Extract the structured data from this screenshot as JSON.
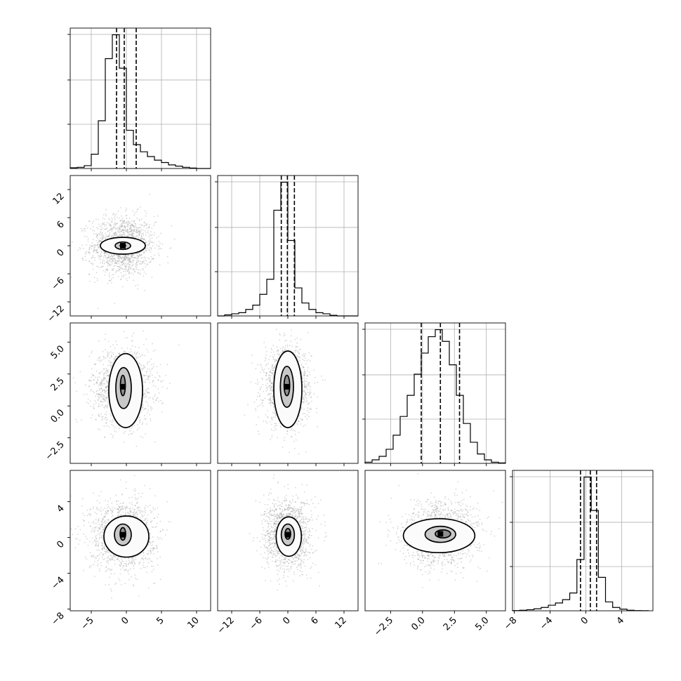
{
  "chart_data": {
    "type": "corner",
    "grid": true,
    "parameters": [
      {
        "ticks": [
          -5,
          0,
          5,
          10
        ],
        "tick_labels": [
          "−5",
          "0",
          "5",
          "10"
        ],
        "range": [
          -8,
          12
        ],
        "quantiles": [
          -1.4,
          -0.3,
          1.4
        ],
        "hist_edges": [
          -8,
          -7,
          -6,
          -5,
          -4,
          -3,
          -2,
          -1,
          0,
          1,
          2,
          3,
          4,
          5,
          6,
          7,
          8,
          9,
          10,
          11,
          12
        ],
        "hist_counts": [
          0.3,
          0.5,
          1.2,
          6,
          20,
          46,
          56,
          42,
          16,
          10,
          7,
          5,
          3.5,
          2.5,
          1.5,
          1,
          0.5,
          0.2,
          0,
          0
        ]
      },
      {
        "ticks": [
          -12,
          -6,
          0,
          6,
          12
        ],
        "tick_labels": [
          "−12",
          "−6",
          "0",
          "6",
          "12"
        ],
        "range": [
          -15,
          15
        ],
        "quantiles": [
          -1.4,
          -0.1,
          1.4
        ],
        "hist_edges": [
          -15,
          -13.5,
          -12,
          -10.5,
          -9,
          -7.5,
          -6,
          -4.5,
          -3,
          -1.5,
          0,
          1.5,
          3,
          4.5,
          6,
          7.5,
          9,
          10.5,
          12,
          13.5,
          15
        ],
        "hist_counts": [
          0,
          0.5,
          1,
          1.5,
          3,
          5,
          10,
          17,
          49,
          62,
          35,
          13,
          6,
          3,
          1.5,
          1,
          0.3,
          0,
          0,
          0
        ]
      },
      {
        "ticks": [
          -2.5,
          0.0,
          2.5,
          5.0
        ],
        "tick_labels": [
          "−2.5",
          "0.0",
          "2.5",
          "5.0"
        ],
        "range": [
          -4.5,
          6.5
        ],
        "quantiles": [
          -0.1,
          1.4,
          2.9
        ],
        "hist_edges": [
          -4.5,
          -3.95,
          -3.4,
          -2.85,
          -2.3,
          -1.75,
          -1.2,
          -0.65,
          -0.1,
          0.45,
          1.0,
          1.55,
          2.1,
          2.65,
          3.2,
          3.75,
          4.3,
          4.85,
          5.4,
          5.95,
          6.5
        ],
        "hist_counts": [
          0.5,
          1.5,
          3,
          6,
          12,
          20,
          29,
          38,
          47,
          54,
          57,
          52,
          42,
          29,
          17,
          9,
          4,
          1.5,
          0.5,
          0.2
        ]
      },
      {
        "ticks": [
          -8,
          -4,
          0,
          4
        ],
        "tick_labels": [
          "−8",
          "−4",
          "0",
          "4"
        ],
        "range": [
          -8.2,
          7.5
        ],
        "quantiles": [
          -0.6,
          0.5,
          1.2
        ],
        "hist_edges": [
          -8.2,
          -7.4,
          -6.6,
          -5.8,
          -5.0,
          -4.2,
          -3.4,
          -2.6,
          -1.8,
          -1.0,
          -0.2,
          0.6,
          1.4,
          2.2,
          3.0,
          3.8,
          4.6,
          5.4,
          6.2,
          7.0
        ],
        "hist_counts": [
          0.2,
          0.5,
          1,
          1.8,
          3,
          5,
          7,
          10,
          16,
          46,
          120,
          90,
          30,
          8,
          3,
          1.5,
          0.5,
          0.2,
          0.1
        ]
      }
    ],
    "pairs": [
      {
        "row": 1,
        "col": 0,
        "center": [
          -0.5,
          0
        ],
        "sigma": [
          2.3,
          3.2
        ],
        "rho": 0,
        "contours": [
          [
            -0.5,
            0,
            0.4,
            0.22
          ],
          [
            -0.5,
            0,
            1.1,
            0.8
          ],
          [
            -0.5,
            0,
            3.2,
            1.8
          ]
        ]
      },
      {
        "row": 2,
        "col": 0,
        "center": [
          -0.5,
          1.5
        ],
        "sigma": [
          2.2,
          1.5
        ],
        "rho": 0,
        "contours": [
          [
            -0.5,
            1.6,
            0.35,
            0.8
          ],
          [
            -0.4,
            1.4,
            1.1,
            1.6
          ],
          [
            -0.1,
            1.2,
            2.4,
            2.9
          ]
        ]
      },
      {
        "row": 2,
        "col": 1,
        "center": [
          -0.2,
          1.5
        ],
        "sigma": [
          2.5,
          1.5
        ],
        "rho": 0,
        "contours": [
          [
            -0.2,
            1.6,
            0.6,
            0.8
          ],
          [
            -0.2,
            1.5,
            1.4,
            1.6
          ],
          [
            0,
            1.3,
            3.0,
            3.0
          ]
        ]
      },
      {
        "row": 3,
        "col": 0,
        "center": [
          -0.5,
          0.3
        ],
        "sigma": [
          2.3,
          2.0
        ],
        "rho": 0,
        "contours": [
          [
            -0.5,
            0.4,
            0.4,
            0.7
          ],
          [
            -0.5,
            0.3,
            1.2,
            1.2
          ],
          [
            0,
            0.1,
            3.2,
            2.3
          ]
        ]
      },
      {
        "row": 3,
        "col": 1,
        "center": [
          0,
          0.3
        ],
        "sigma": [
          2.5,
          2.0
        ],
        "rho": 0,
        "contours": [
          [
            0,
            0.4,
            0.6,
            0.6
          ],
          [
            0,
            0.3,
            1.4,
            1.2
          ],
          [
            0.2,
            0.1,
            2.7,
            2.2
          ]
        ]
      },
      {
        "row": 3,
        "col": 2,
        "center": [
          1.4,
          0.4
        ],
        "sigma": [
          1.5,
          1.8
        ],
        "rho": 0.08,
        "contours": [
          [
            1.6,
            0.4,
            0.6,
            0.45
          ],
          [
            1.4,
            0.35,
            1.2,
            0.9
          ],
          [
            1.3,
            0.2,
            2.8,
            1.9
          ]
        ]
      }
    ]
  }
}
